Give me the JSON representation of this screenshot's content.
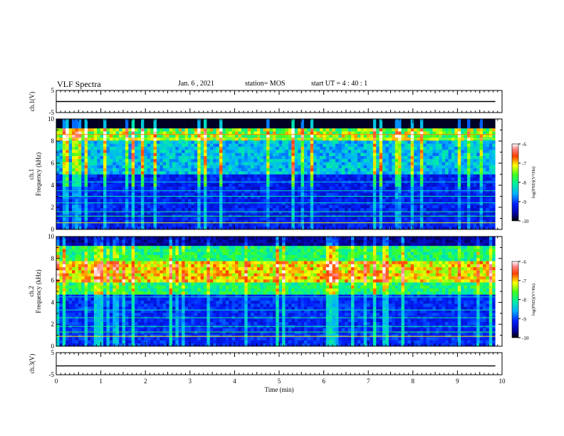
{
  "header": {
    "title": "VLF Spectra",
    "date": "Jan. 6 , 2021",
    "station": "station= MOS",
    "start_ut": "start UT =  4 : 40 : 1"
  },
  "chart_data": [
    {
      "type": "line",
      "panel": "ch.1(V)",
      "ylabel": "ch.1(V)",
      "ylim": [
        -5,
        5
      ],
      "yticks": [
        "5",
        "-5"
      ],
      "xlim": [
        0,
        10
      ],
      "series": [
        {
          "x": [
            0,
            9.85
          ],
          "values": [
            0,
            0
          ]
        }
      ]
    },
    {
      "type": "heatmap",
      "panel": "ch.1 spectrogram",
      "ylabel_line1": "ch.1",
      "ylabel_line2": "Frequency (kHz)",
      "ylim": [
        0,
        10
      ],
      "yticks": [
        "0",
        "2",
        "4",
        "6",
        "8",
        "10"
      ],
      "xlim": [
        0,
        10
      ],
      "colorbar": {
        "label": "log(PSD)(V²/Hz)",
        "range": [
          -10,
          -6
        ],
        "ticks": [
          "-6",
          "-7",
          "-8",
          "-9",
          "-10"
        ]
      }
    },
    {
      "type": "heatmap",
      "panel": "ch.2 spectrogram",
      "ylabel_line1": "ch.2",
      "ylabel_line2": "Frequency (kHz)",
      "ylim": [
        0,
        10
      ],
      "yticks": [
        "0",
        "2",
        "4",
        "6",
        "8",
        "10"
      ],
      "xlim": [
        0,
        10
      ],
      "colorbar": {
        "label": "log(PSD)(V²/Hz)",
        "range": [
          -10,
          -6
        ],
        "ticks": [
          "-6",
          "-7",
          "-8",
          "-9",
          "-10"
        ]
      }
    },
    {
      "type": "line",
      "panel": "ch.3(V)",
      "ylabel": "ch.3(V)",
      "ylim": [
        -5,
        5
      ],
      "yticks": [
        "5",
        "-5"
      ],
      "xlim": [
        0,
        10
      ],
      "xlabel": "Time (min)",
      "xticks": [
        "0",
        "1",
        "2",
        "3",
        "4",
        "5",
        "6",
        "7",
        "8",
        "9",
        "10"
      ],
      "series": [
        {
          "x": [
            0,
            9.85
          ],
          "values": [
            -1,
            -1
          ]
        }
      ]
    }
  ]
}
